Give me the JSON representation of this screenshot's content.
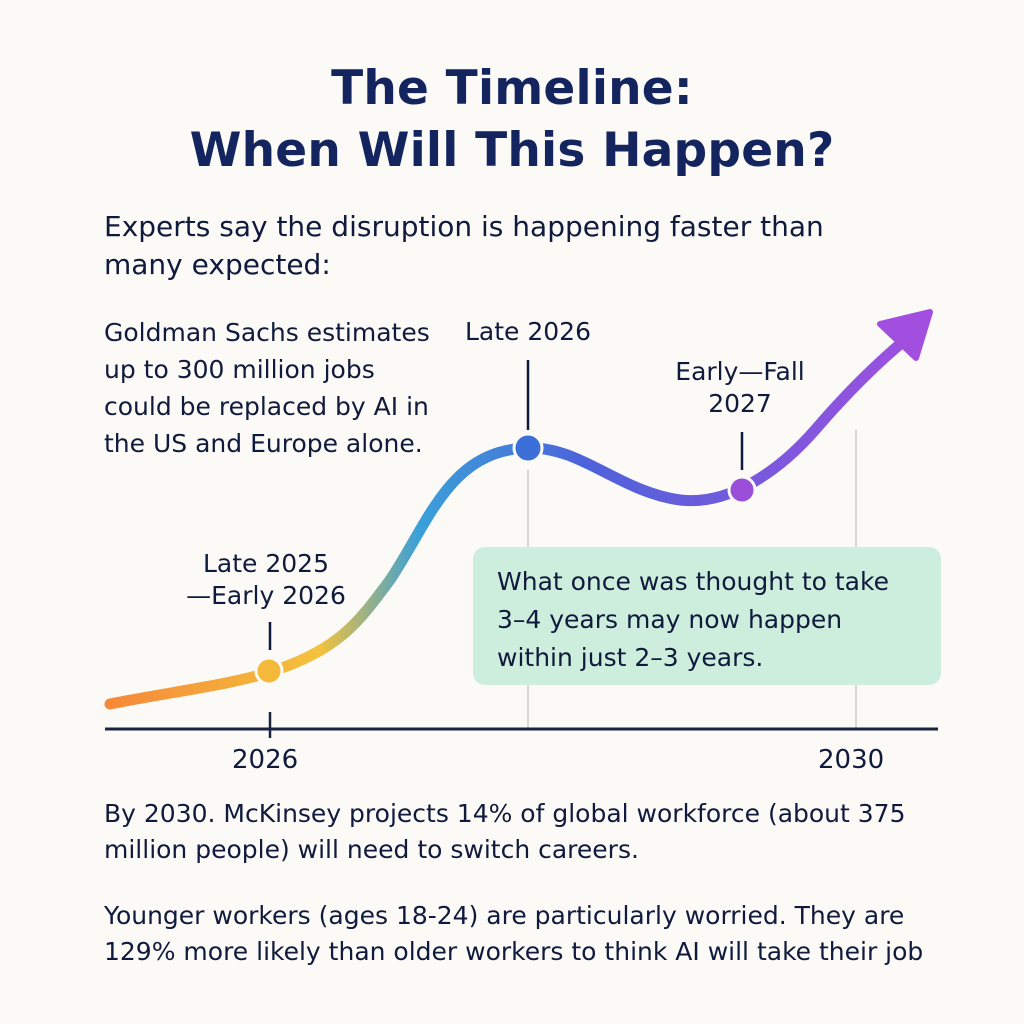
{
  "title": {
    "line1": "The Timeline:",
    "line2": "When Will This Happen?"
  },
  "intro": "Experts say the disruption is happening faster than many expected:",
  "left_note": "Goldman Sachs estimates up to 300 million jobs could be replaced by AI in the US and Europe alone.",
  "milestones": [
    {
      "line1": "Late 2025",
      "line2": "—Early 2026",
      "color": "#f4b93a"
    },
    {
      "line1": "Late 2026",
      "line2": "",
      "color": "#3d6fd9"
    },
    {
      "line1": "Early—Fall",
      "line2": "2027",
      "color": "#9b4fd9"
    }
  ],
  "callout": "What once was thought to take 3–4 years may now happen within just 2–3 years.",
  "axis": {
    "start_label": "2026",
    "end_label": "2030"
  },
  "colors": {
    "curve_start": "#f5883a",
    "curve_mid_yellow": "#f4c23c",
    "curve_mid_blue": "#3aa0d8",
    "curve_blue": "#4d63da",
    "curve_end": "#a24fe0",
    "callout_bg": "#cdeedd",
    "title": "#13245e"
  },
  "footer": {
    "mckinsey": "By 2030. McKinsey projects 14% of global workforce (about 375 million people) will need to switch careers.",
    "young_workers": "Younger workers (ages 18-24) are particularly worried. They are 129% more likely than older workers to think AI will take their job"
  }
}
